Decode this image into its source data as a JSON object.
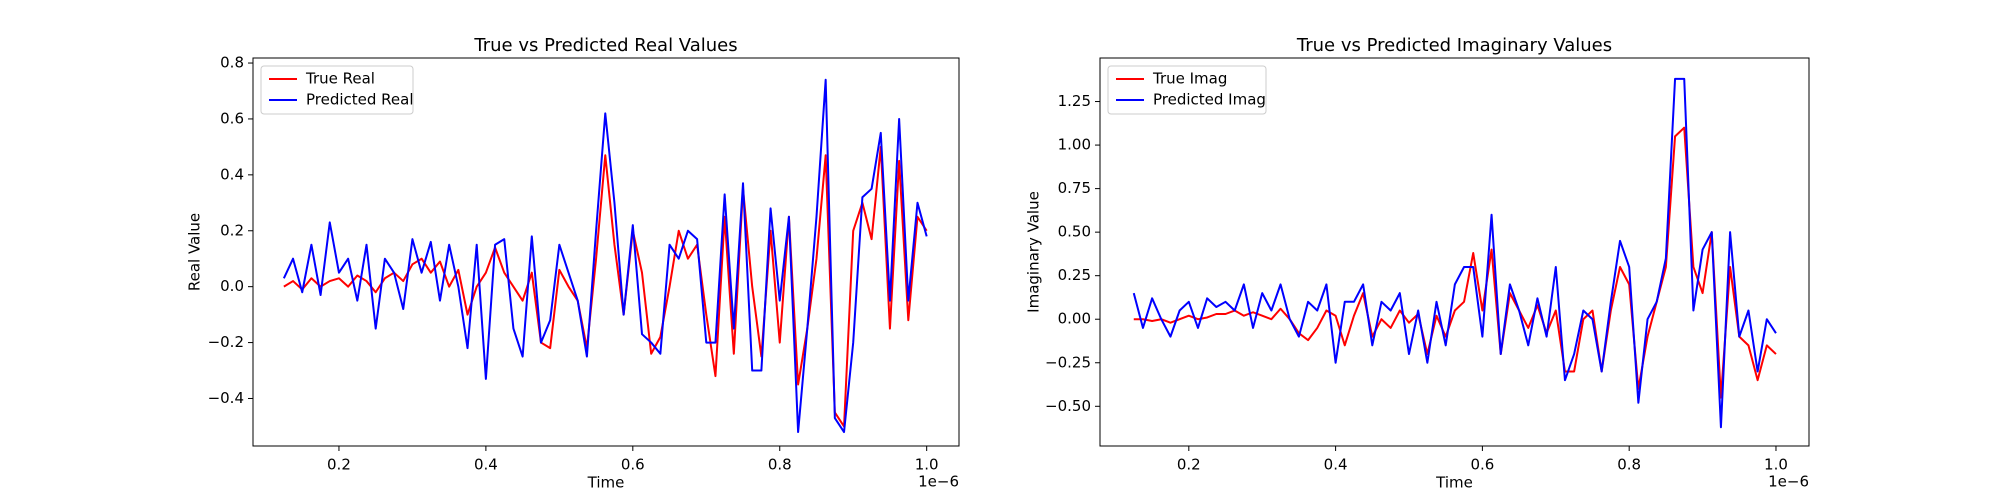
{
  "chart_data": [
    {
      "type": "line",
      "title": "True vs Predicted Real Values",
      "x_label": "Time",
      "y_label": "Real Value",
      "x_offset_label": "1e−6",
      "legend": "upper left",
      "grid": false,
      "x": [
        0.125,
        0.1375,
        0.15,
        0.1625,
        0.175,
        0.1875,
        0.2,
        0.2125,
        0.225,
        0.2375,
        0.25,
        0.2625,
        0.275,
        0.2875,
        0.3,
        0.3125,
        0.325,
        0.3375,
        0.35,
        0.3625,
        0.375,
        0.3875,
        0.4,
        0.4125,
        0.425,
        0.4375,
        0.45,
        0.4625,
        0.475,
        0.4875,
        0.5,
        0.5125,
        0.525,
        0.5375,
        0.55,
        0.5625,
        0.575,
        0.5875,
        0.6,
        0.6125,
        0.625,
        0.6375,
        0.65,
        0.6625,
        0.675,
        0.6875,
        0.7,
        0.7125,
        0.725,
        0.7375,
        0.75,
        0.7625,
        0.775,
        0.7875,
        0.8,
        0.8125,
        0.825,
        0.8375,
        0.85,
        0.8625,
        0.875,
        0.8875,
        0.9,
        0.9125,
        0.925,
        0.9375,
        0.95,
        0.9625,
        0.975,
        0.9875,
        1.0
      ],
      "series": [
        {
          "name": "True Real",
          "color": "#ff0000",
          "values": [
            0.0,
            0.02,
            -0.01,
            0.03,
            0.0,
            0.02,
            0.03,
            0.0,
            0.04,
            0.02,
            -0.02,
            0.03,
            0.05,
            0.02,
            0.08,
            0.1,
            0.05,
            0.09,
            0.0,
            0.06,
            -0.1,
            0.0,
            0.05,
            0.14,
            0.05,
            0.0,
            -0.05,
            0.05,
            -0.2,
            -0.22,
            0.06,
            0.0,
            -0.05,
            -0.22,
            0.1,
            0.47,
            0.15,
            -0.1,
            0.2,
            0.05,
            -0.24,
            -0.18,
            0.0,
            0.2,
            0.1,
            0.15,
            -0.1,
            -0.32,
            0.25,
            -0.24,
            0.35,
            0.0,
            -0.25,
            0.2,
            -0.2,
            0.25,
            -0.35,
            -0.15,
            0.1,
            0.47,
            -0.45,
            -0.5,
            0.2,
            0.3,
            0.17,
            0.5,
            -0.15,
            0.45,
            -0.12,
            0.25,
            0.2
          ]
        },
        {
          "name": "Predicted Real",
          "color": "#0000ff",
          "values": [
            0.03,
            0.1,
            -0.02,
            0.15,
            -0.03,
            0.23,
            0.05,
            0.1,
            -0.05,
            0.15,
            -0.15,
            0.1,
            0.05,
            -0.08,
            0.17,
            0.05,
            0.16,
            -0.05,
            0.15,
            0.0,
            -0.22,
            0.15,
            -0.33,
            0.15,
            0.17,
            -0.15,
            -0.25,
            0.18,
            -0.2,
            -0.12,
            0.15,
            0.05,
            -0.05,
            -0.25,
            0.2,
            0.62,
            0.3,
            -0.1,
            0.22,
            -0.17,
            -0.2,
            -0.24,
            0.15,
            0.1,
            0.2,
            0.17,
            -0.2,
            -0.2,
            0.33,
            -0.15,
            0.37,
            -0.3,
            -0.3,
            0.28,
            -0.05,
            0.25,
            -0.52,
            -0.15,
            0.25,
            0.74,
            -0.47,
            -0.52,
            -0.2,
            0.32,
            0.35,
            0.55,
            -0.05,
            0.6,
            -0.05,
            0.3,
            0.18
          ]
        }
      ],
      "xlim": [
        0.083,
        1.044
      ],
      "xticks": [
        0.2,
        0.4,
        0.6,
        0.8,
        {
          "value": 1,
          "label": "1.0"
        }
      ],
      "ylim": [
        -0.57,
        0.818
      ],
      "yticks": [
        {
          "value": -0.4,
          "label": "−0.4"
        },
        {
          "value": -0.2,
          "label": "−0.2"
        },
        {
          "value": 0,
          "label": "0.0"
        },
        0.2,
        0.4,
        0.6,
        0.8
      ]
    },
    {
      "type": "line",
      "title": "True vs Predicted Imaginary Values",
      "x_label": "Time",
      "y_label": "Imaginary Value",
      "x_offset_label": "1e−6",
      "legend": "upper left",
      "grid": false,
      "x": [
        0.125,
        0.1375,
        0.15,
        0.1625,
        0.175,
        0.1875,
        0.2,
        0.2125,
        0.225,
        0.2375,
        0.25,
        0.2625,
        0.275,
        0.2875,
        0.3,
        0.3125,
        0.325,
        0.3375,
        0.35,
        0.3625,
        0.375,
        0.3875,
        0.4,
        0.4125,
        0.425,
        0.4375,
        0.45,
        0.4625,
        0.475,
        0.4875,
        0.5,
        0.5125,
        0.525,
        0.5375,
        0.55,
        0.5625,
        0.575,
        0.5875,
        0.6,
        0.6125,
        0.625,
        0.6375,
        0.65,
        0.6625,
        0.675,
        0.6875,
        0.7,
        0.7125,
        0.725,
        0.7375,
        0.75,
        0.7625,
        0.775,
        0.7875,
        0.8,
        0.8125,
        0.825,
        0.8375,
        0.85,
        0.8625,
        0.875,
        0.8875,
        0.9,
        0.9125,
        0.925,
        0.9375,
        0.95,
        0.9625,
        0.975,
        0.9875,
        1.0
      ],
      "series": [
        {
          "name": "True Imag",
          "color": "#ff0000",
          "values": [
            0.0,
            0.0,
            -0.01,
            0.0,
            -0.02,
            0.0,
            0.02,
            0.0,
            0.01,
            0.03,
            0.03,
            0.05,
            0.02,
            0.04,
            0.02,
            0.0,
            0.06,
            0.0,
            -0.08,
            -0.12,
            -0.05,
            0.05,
            0.02,
            -0.15,
            0.02,
            0.15,
            -0.1,
            0.0,
            -0.05,
            0.05,
            -0.02,
            0.03,
            -0.2,
            0.02,
            -0.1,
            0.05,
            0.1,
            0.38,
            0.05,
            0.4,
            -0.2,
            0.15,
            0.05,
            -0.05,
            0.08,
            -0.08,
            0.05,
            -0.3,
            -0.3,
            0.0,
            0.05,
            -0.3,
            0.05,
            0.3,
            0.2,
            -0.4,
            -0.1,
            0.1,
            0.3,
            1.05,
            1.1,
            0.3,
            0.15,
            0.5,
            -0.45,
            0.3,
            -0.1,
            -0.15,
            -0.35,
            -0.15,
            -0.2
          ]
        },
        {
          "name": "Predicted Imag",
          "color": "#0000ff",
          "values": [
            0.15,
            -0.05,
            0.12,
            0.0,
            -0.1,
            0.05,
            0.1,
            -0.05,
            0.12,
            0.07,
            0.1,
            0.05,
            0.2,
            -0.05,
            0.15,
            0.05,
            0.2,
            0.0,
            -0.1,
            0.1,
            0.05,
            0.2,
            -0.25,
            0.1,
            0.1,
            0.2,
            -0.15,
            0.1,
            0.05,
            0.15,
            -0.2,
            0.05,
            -0.25,
            0.1,
            -0.15,
            0.2,
            0.3,
            0.3,
            -0.1,
            0.6,
            -0.2,
            0.2,
            0.05,
            -0.15,
            0.12,
            -0.1,
            0.3,
            -0.35,
            -0.2,
            0.05,
            0.0,
            -0.3,
            0.1,
            0.45,
            0.3,
            -0.48,
            0.0,
            0.1,
            0.35,
            1.38,
            1.38,
            0.05,
            0.4,
            0.5,
            -0.62,
            0.5,
            -0.1,
            0.05,
            -0.3,
            0.0,
            -0.08
          ]
        }
      ],
      "xlim": [
        0.079,
        1.045
      ],
      "xticks": [
        0.2,
        0.4,
        0.6,
        0.8,
        {
          "value": 1,
          "label": "1.0"
        }
      ],
      "ylim": [
        -0.728,
        1.5
      ],
      "yticks": [
        {
          "value": -0.5,
          "label": "−0.50"
        },
        {
          "value": -0.25,
          "label": "−0.25"
        },
        {
          "value": 0,
          "label": "0.00"
        },
        0.25,
        {
          "value": 0.5,
          "label": "0.50"
        },
        0.75,
        {
          "value": 1,
          "label": "1.00"
        },
        1.25
      ]
    }
  ]
}
